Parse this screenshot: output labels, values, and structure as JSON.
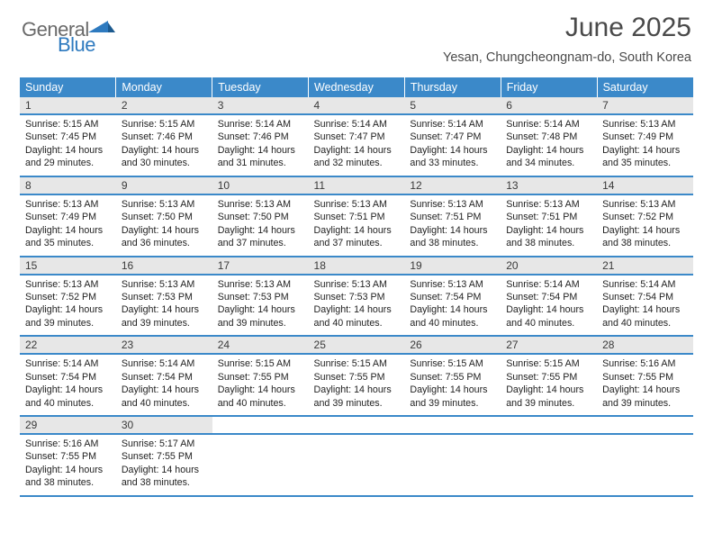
{
  "logo": {
    "word1": "General",
    "word2": "Blue"
  },
  "colors": {
    "header_bg": "#3b89c9",
    "header_text": "#ffffff",
    "daynum_bg": "#e7e7e7",
    "daynum_text": "#3a3a3a",
    "body_text": "#222222",
    "separator": "#3b89c9",
    "logo_gray": "#6a6a6a",
    "logo_blue": "#2e7abf",
    "title_color": "#4a4a4a",
    "page_bg": "#ffffff"
  },
  "typography": {
    "title_fontsize": 30,
    "subtitle_fontsize": 14.5,
    "dayheader_fontsize": 12.5,
    "daynum_fontsize": 12,
    "cell_fontsize": 10.7
  },
  "title": "June 2025",
  "subtitle": "Yesan, Chungcheongnam-do, South Korea",
  "day_headers": [
    "Sunday",
    "Monday",
    "Tuesday",
    "Wednesday",
    "Thursday",
    "Friday",
    "Saturday"
  ],
  "weeks": [
    {
      "nums": [
        "1",
        "2",
        "3",
        "4",
        "5",
        "6",
        "7"
      ],
      "cells": [
        {
          "sr": "Sunrise: 5:15 AM",
          "ss": "Sunset: 7:45 PM",
          "d1": "Daylight: 14 hours",
          "d2": "and 29 minutes."
        },
        {
          "sr": "Sunrise: 5:15 AM",
          "ss": "Sunset: 7:46 PM",
          "d1": "Daylight: 14 hours",
          "d2": "and 30 minutes."
        },
        {
          "sr": "Sunrise: 5:14 AM",
          "ss": "Sunset: 7:46 PM",
          "d1": "Daylight: 14 hours",
          "d2": "and 31 minutes."
        },
        {
          "sr": "Sunrise: 5:14 AM",
          "ss": "Sunset: 7:47 PM",
          "d1": "Daylight: 14 hours",
          "d2": "and 32 minutes."
        },
        {
          "sr": "Sunrise: 5:14 AM",
          "ss": "Sunset: 7:47 PM",
          "d1": "Daylight: 14 hours",
          "d2": "and 33 minutes."
        },
        {
          "sr": "Sunrise: 5:14 AM",
          "ss": "Sunset: 7:48 PM",
          "d1": "Daylight: 14 hours",
          "d2": "and 34 minutes."
        },
        {
          "sr": "Sunrise: 5:13 AM",
          "ss": "Sunset: 7:49 PM",
          "d1": "Daylight: 14 hours",
          "d2": "and 35 minutes."
        }
      ]
    },
    {
      "nums": [
        "8",
        "9",
        "10",
        "11",
        "12",
        "13",
        "14"
      ],
      "cells": [
        {
          "sr": "Sunrise: 5:13 AM",
          "ss": "Sunset: 7:49 PM",
          "d1": "Daylight: 14 hours",
          "d2": "and 35 minutes."
        },
        {
          "sr": "Sunrise: 5:13 AM",
          "ss": "Sunset: 7:50 PM",
          "d1": "Daylight: 14 hours",
          "d2": "and 36 minutes."
        },
        {
          "sr": "Sunrise: 5:13 AM",
          "ss": "Sunset: 7:50 PM",
          "d1": "Daylight: 14 hours",
          "d2": "and 37 minutes."
        },
        {
          "sr": "Sunrise: 5:13 AM",
          "ss": "Sunset: 7:51 PM",
          "d1": "Daylight: 14 hours",
          "d2": "and 37 minutes."
        },
        {
          "sr": "Sunrise: 5:13 AM",
          "ss": "Sunset: 7:51 PM",
          "d1": "Daylight: 14 hours",
          "d2": "and 38 minutes."
        },
        {
          "sr": "Sunrise: 5:13 AM",
          "ss": "Sunset: 7:51 PM",
          "d1": "Daylight: 14 hours",
          "d2": "and 38 minutes."
        },
        {
          "sr": "Sunrise: 5:13 AM",
          "ss": "Sunset: 7:52 PM",
          "d1": "Daylight: 14 hours",
          "d2": "and 38 minutes."
        }
      ]
    },
    {
      "nums": [
        "15",
        "16",
        "17",
        "18",
        "19",
        "20",
        "21"
      ],
      "cells": [
        {
          "sr": "Sunrise: 5:13 AM",
          "ss": "Sunset: 7:52 PM",
          "d1": "Daylight: 14 hours",
          "d2": "and 39 minutes."
        },
        {
          "sr": "Sunrise: 5:13 AM",
          "ss": "Sunset: 7:53 PM",
          "d1": "Daylight: 14 hours",
          "d2": "and 39 minutes."
        },
        {
          "sr": "Sunrise: 5:13 AM",
          "ss": "Sunset: 7:53 PM",
          "d1": "Daylight: 14 hours",
          "d2": "and 39 minutes."
        },
        {
          "sr": "Sunrise: 5:13 AM",
          "ss": "Sunset: 7:53 PM",
          "d1": "Daylight: 14 hours",
          "d2": "and 40 minutes."
        },
        {
          "sr": "Sunrise: 5:13 AM",
          "ss": "Sunset: 7:54 PM",
          "d1": "Daylight: 14 hours",
          "d2": "and 40 minutes."
        },
        {
          "sr": "Sunrise: 5:14 AM",
          "ss": "Sunset: 7:54 PM",
          "d1": "Daylight: 14 hours",
          "d2": "and 40 minutes."
        },
        {
          "sr": "Sunrise: 5:14 AM",
          "ss": "Sunset: 7:54 PM",
          "d1": "Daylight: 14 hours",
          "d2": "and 40 minutes."
        }
      ]
    },
    {
      "nums": [
        "22",
        "23",
        "24",
        "25",
        "26",
        "27",
        "28"
      ],
      "cells": [
        {
          "sr": "Sunrise: 5:14 AM",
          "ss": "Sunset: 7:54 PM",
          "d1": "Daylight: 14 hours",
          "d2": "and 40 minutes."
        },
        {
          "sr": "Sunrise: 5:14 AM",
          "ss": "Sunset: 7:54 PM",
          "d1": "Daylight: 14 hours",
          "d2": "and 40 minutes."
        },
        {
          "sr": "Sunrise: 5:15 AM",
          "ss": "Sunset: 7:55 PM",
          "d1": "Daylight: 14 hours",
          "d2": "and 40 minutes."
        },
        {
          "sr": "Sunrise: 5:15 AM",
          "ss": "Sunset: 7:55 PM",
          "d1": "Daylight: 14 hours",
          "d2": "and 39 minutes."
        },
        {
          "sr": "Sunrise: 5:15 AM",
          "ss": "Sunset: 7:55 PM",
          "d1": "Daylight: 14 hours",
          "d2": "and 39 minutes."
        },
        {
          "sr": "Sunrise: 5:15 AM",
          "ss": "Sunset: 7:55 PM",
          "d1": "Daylight: 14 hours",
          "d2": "and 39 minutes."
        },
        {
          "sr": "Sunrise: 5:16 AM",
          "ss": "Sunset: 7:55 PM",
          "d1": "Daylight: 14 hours",
          "d2": "and 39 minutes."
        }
      ]
    },
    {
      "nums": [
        "29",
        "30",
        "",
        "",
        "",
        "",
        ""
      ],
      "cells": [
        {
          "sr": "Sunrise: 5:16 AM",
          "ss": "Sunset: 7:55 PM",
          "d1": "Daylight: 14 hours",
          "d2": "and 38 minutes."
        },
        {
          "sr": "Sunrise: 5:17 AM",
          "ss": "Sunset: 7:55 PM",
          "d1": "Daylight: 14 hours",
          "d2": "and 38 minutes."
        },
        null,
        null,
        null,
        null,
        null
      ]
    }
  ]
}
